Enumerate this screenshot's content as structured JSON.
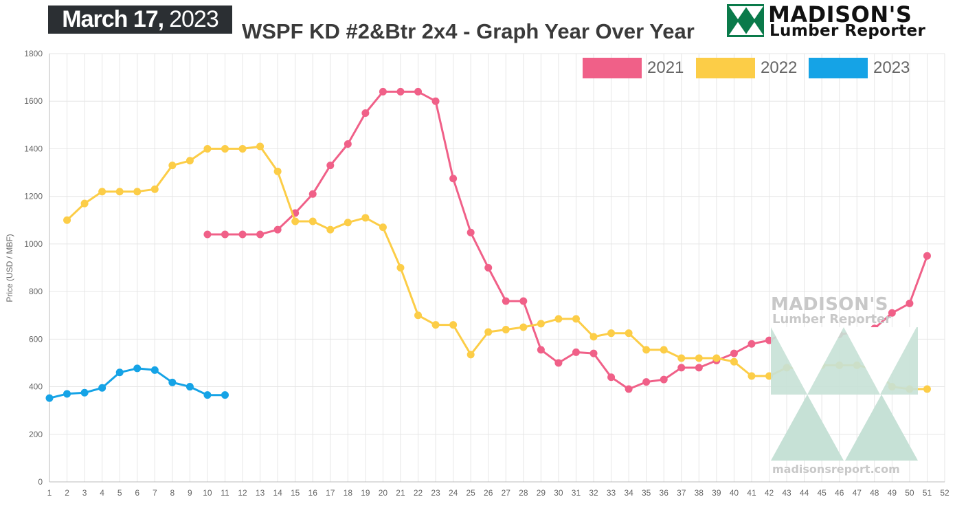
{
  "header": {
    "date_bold": "March 17,",
    "date_light": "2023",
    "title": "WSPF KD #2&Btr 2x4 - Graph Year Over Year"
  },
  "logo": {
    "name": "MADISON'S",
    "sub": "Lumber Reporter",
    "color": "#0a7a4a",
    "icon": "tree-triangles-icon"
  },
  "watermark": {
    "name": "MADISON'S",
    "sub": "Lumber Reporter",
    "url": "madisonsreport.com"
  },
  "chart_data": {
    "type": "line",
    "title": "WSPF KD #2&Btr 2x4 - Graph Year Over Year",
    "xlabel": "",
    "ylabel": "Price (USD / MBF)",
    "xlim": [
      1,
      52
    ],
    "ylim": [
      0,
      1800
    ],
    "xticks": [
      1,
      2,
      3,
      4,
      5,
      6,
      7,
      8,
      9,
      10,
      11,
      12,
      13,
      14,
      15,
      16,
      17,
      18,
      19,
      20,
      21,
      22,
      23,
      24,
      25,
      26,
      27,
      28,
      29,
      30,
      31,
      32,
      33,
      34,
      35,
      36,
      37,
      38,
      39,
      40,
      41,
      42,
      43,
      44,
      45,
      46,
      47,
      48,
      49,
      50,
      51,
      52
    ],
    "yticks": [
      0,
      200,
      400,
      600,
      800,
      1000,
      1200,
      1400,
      1600,
      1800
    ],
    "grid": true,
    "legend_position": "top-right",
    "series": [
      {
        "name": "2021",
        "color": "#f06088",
        "x": [
          10,
          11,
          12,
          13,
          14,
          15,
          16,
          17,
          18,
          19,
          20,
          21,
          22,
          23,
          24,
          25,
          26,
          27,
          28,
          29,
          30,
          31,
          32,
          33,
          34,
          35,
          36,
          37,
          38,
          39,
          40,
          41,
          42,
          43,
          44,
          45,
          46,
          47,
          48,
          49,
          50,
          51
        ],
        "values": [
          1040,
          1040,
          1040,
          1040,
          1060,
          1130,
          1210,
          1330,
          1420,
          1550,
          1640,
          1640,
          1640,
          1600,
          1275,
          1048,
          900,
          760,
          760,
          555,
          500,
          545,
          540,
          440,
          390,
          420,
          430,
          480,
          480,
          510,
          540,
          580,
          595,
          630,
          630,
          620,
          620,
          630,
          645,
          710,
          750,
          950
        ]
      },
      {
        "name": "2022",
        "color": "#fccd47",
        "x": [
          2,
          3,
          4,
          5,
          6,
          7,
          8,
          9,
          10,
          11,
          12,
          13,
          14,
          15,
          16,
          17,
          18,
          19,
          20,
          21,
          22,
          23,
          24,
          25,
          26,
          27,
          28,
          29,
          30,
          31,
          32,
          33,
          34,
          35,
          36,
          37,
          38,
          39,
          40,
          41,
          42,
          43,
          44,
          45,
          46,
          47,
          48,
          49,
          50,
          51
        ],
        "values": [
          1100,
          1170,
          1220,
          1220,
          1220,
          1230,
          1330,
          1350,
          1400,
          1400,
          1400,
          1410,
          1305,
          1095,
          1095,
          1060,
          1090,
          1110,
          1070,
          900,
          700,
          660,
          660,
          535,
          630,
          640,
          650,
          665,
          685,
          685,
          610,
          625,
          625,
          555,
          555,
          520,
          520,
          520,
          505,
          445,
          445,
          480,
          480,
          490,
          490,
          490,
          475,
          400,
          390,
          390
        ]
      },
      {
        "name": "2023",
        "color": "#15a3e6",
        "x": [
          1,
          2,
          3,
          4,
          5,
          6,
          7,
          8,
          9,
          10,
          11
        ],
        "values": [
          352,
          370,
          375,
          395,
          460,
          477,
          470,
          418,
          400,
          365,
          365
        ]
      }
    ]
  }
}
